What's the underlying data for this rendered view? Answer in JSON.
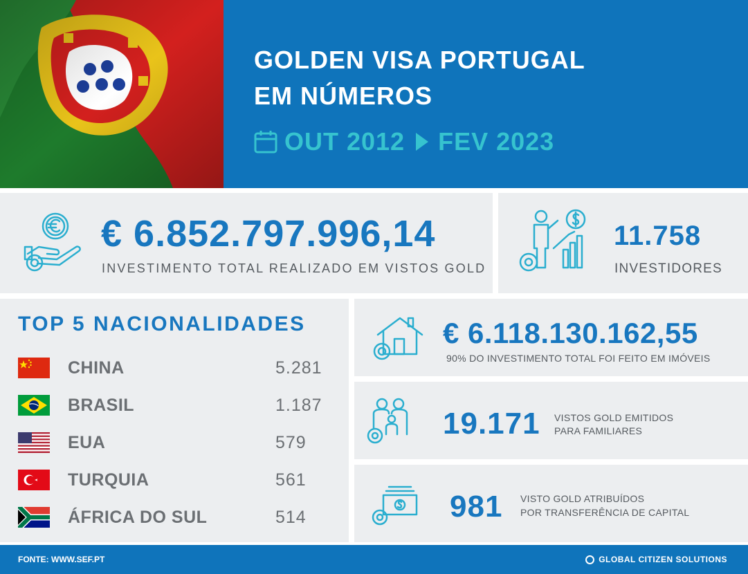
{
  "header": {
    "title_line1": "GOLDEN VISA PORTUGAL",
    "title_line2": "EM NÚMEROS",
    "period_start": "OUT 2012",
    "period_end": "FEV 2023"
  },
  "total_investment": {
    "value": "€ 6.852.797.996,14",
    "label": "INVESTIMENTO TOTAL REALIZADO EM VISTOS GOLD"
  },
  "investors": {
    "value": "11.758",
    "label": "INVESTIDORES"
  },
  "top_nationalities": {
    "title": "TOP 5 NACIONALIDADES",
    "items": [
      {
        "country": "CHINA",
        "count": "5.281",
        "flag_icon": "china-flag-icon"
      },
      {
        "country": "BRASIL",
        "count": "1.187",
        "flag_icon": "brazil-flag-icon"
      },
      {
        "country": "EUA",
        "count": "579",
        "flag_icon": "usa-flag-icon"
      },
      {
        "country": "TURQUIA",
        "count": "561",
        "flag_icon": "turkey-flag-icon"
      },
      {
        "country": "ÁFRICA DO SUL",
        "count": "514",
        "flag_icon": "south-africa-flag-icon"
      }
    ]
  },
  "real_estate": {
    "value": "€ 6.118.130.162,55",
    "label": "90% DO INVESTIMENTO TOTAL FOI FEITO EM IMÓVEIS"
  },
  "family_visas": {
    "value": "19.171",
    "label_line1": "VISTOS GOLD EMITIDOS",
    "label_line2": "PARA FAMILIARES"
  },
  "capital_transfer": {
    "value": "981",
    "label_line1": "VISTO GOLD ATRIBUÍDOS",
    "label_line2": "POR TRANSFERÊNCIA DE CAPITAL"
  },
  "footer": {
    "source": "FONTE: WWW.SEF.PT",
    "brand": "GLOBAL CITIZEN SOLUTIONS"
  },
  "colors": {
    "brand_blue": "#0f74bb",
    "accent_teal": "#36c3cf",
    "number_blue": "#1877bf",
    "panel_gray": "#eceef0"
  }
}
